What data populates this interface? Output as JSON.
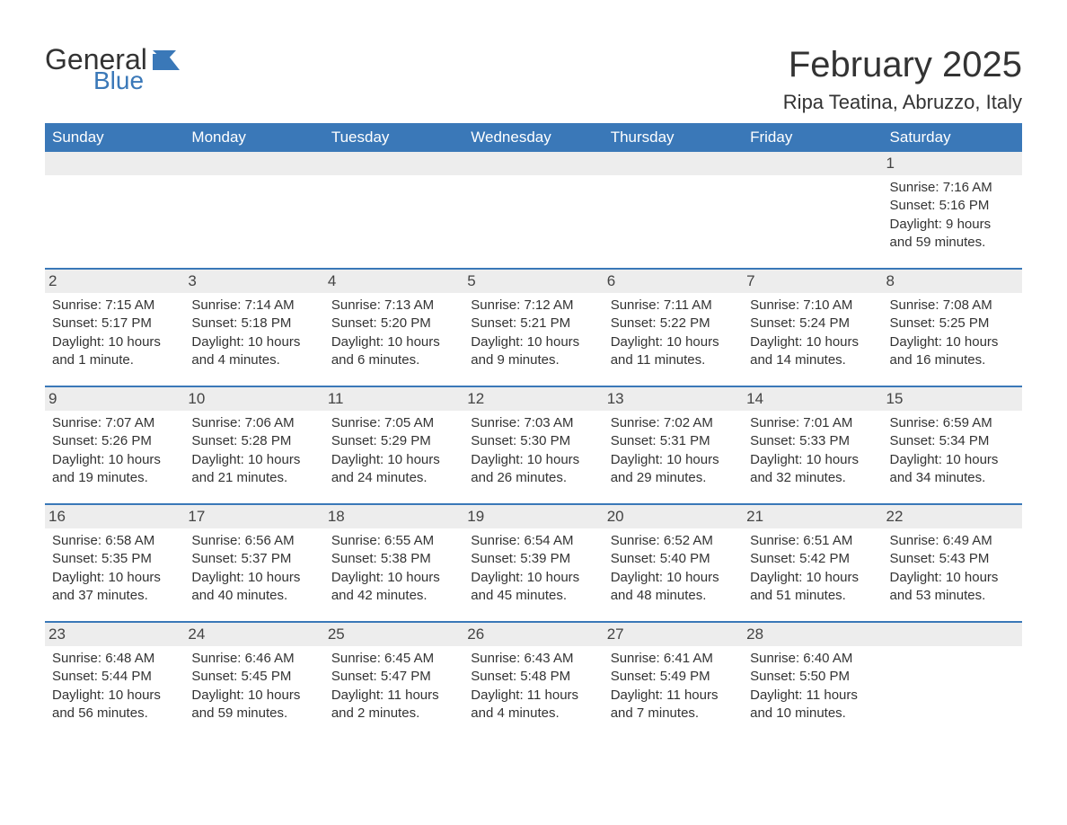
{
  "logo": {
    "general": "General",
    "blue": "Blue",
    "icon_color": "#3a78b8"
  },
  "title": "February 2025",
  "location": "Ripa Teatina, Abruzzo, Italy",
  "colors": {
    "header_bg": "#3a78b8",
    "header_fg": "#ffffff",
    "daynum_bg": "#ededed",
    "border": "#3a78b8",
    "text": "#333333",
    "background": "#ffffff"
  },
  "weekdays": [
    "Sunday",
    "Monday",
    "Tuesday",
    "Wednesday",
    "Thursday",
    "Friday",
    "Saturday"
  ],
  "weeks": [
    [
      null,
      null,
      null,
      null,
      null,
      null,
      {
        "d": "1",
        "sr": "Sunrise: 7:16 AM",
        "ss": "Sunset: 5:16 PM",
        "dl": "Daylight: 9 hours and 59 minutes."
      }
    ],
    [
      {
        "d": "2",
        "sr": "Sunrise: 7:15 AM",
        "ss": "Sunset: 5:17 PM",
        "dl": "Daylight: 10 hours and 1 minute."
      },
      {
        "d": "3",
        "sr": "Sunrise: 7:14 AM",
        "ss": "Sunset: 5:18 PM",
        "dl": "Daylight: 10 hours and 4 minutes."
      },
      {
        "d": "4",
        "sr": "Sunrise: 7:13 AM",
        "ss": "Sunset: 5:20 PM",
        "dl": "Daylight: 10 hours and 6 minutes."
      },
      {
        "d": "5",
        "sr": "Sunrise: 7:12 AM",
        "ss": "Sunset: 5:21 PM",
        "dl": "Daylight: 10 hours and 9 minutes."
      },
      {
        "d": "6",
        "sr": "Sunrise: 7:11 AM",
        "ss": "Sunset: 5:22 PM",
        "dl": "Daylight: 10 hours and 11 minutes."
      },
      {
        "d": "7",
        "sr": "Sunrise: 7:10 AM",
        "ss": "Sunset: 5:24 PM",
        "dl": "Daylight: 10 hours and 14 minutes."
      },
      {
        "d": "8",
        "sr": "Sunrise: 7:08 AM",
        "ss": "Sunset: 5:25 PM",
        "dl": "Daylight: 10 hours and 16 minutes."
      }
    ],
    [
      {
        "d": "9",
        "sr": "Sunrise: 7:07 AM",
        "ss": "Sunset: 5:26 PM",
        "dl": "Daylight: 10 hours and 19 minutes."
      },
      {
        "d": "10",
        "sr": "Sunrise: 7:06 AM",
        "ss": "Sunset: 5:28 PM",
        "dl": "Daylight: 10 hours and 21 minutes."
      },
      {
        "d": "11",
        "sr": "Sunrise: 7:05 AM",
        "ss": "Sunset: 5:29 PM",
        "dl": "Daylight: 10 hours and 24 minutes."
      },
      {
        "d": "12",
        "sr": "Sunrise: 7:03 AM",
        "ss": "Sunset: 5:30 PM",
        "dl": "Daylight: 10 hours and 26 minutes."
      },
      {
        "d": "13",
        "sr": "Sunrise: 7:02 AM",
        "ss": "Sunset: 5:31 PM",
        "dl": "Daylight: 10 hours and 29 minutes."
      },
      {
        "d": "14",
        "sr": "Sunrise: 7:01 AM",
        "ss": "Sunset: 5:33 PM",
        "dl": "Daylight: 10 hours and 32 minutes."
      },
      {
        "d": "15",
        "sr": "Sunrise: 6:59 AM",
        "ss": "Sunset: 5:34 PM",
        "dl": "Daylight: 10 hours and 34 minutes."
      }
    ],
    [
      {
        "d": "16",
        "sr": "Sunrise: 6:58 AM",
        "ss": "Sunset: 5:35 PM",
        "dl": "Daylight: 10 hours and 37 minutes."
      },
      {
        "d": "17",
        "sr": "Sunrise: 6:56 AM",
        "ss": "Sunset: 5:37 PM",
        "dl": "Daylight: 10 hours and 40 minutes."
      },
      {
        "d": "18",
        "sr": "Sunrise: 6:55 AM",
        "ss": "Sunset: 5:38 PM",
        "dl": "Daylight: 10 hours and 42 minutes."
      },
      {
        "d": "19",
        "sr": "Sunrise: 6:54 AM",
        "ss": "Sunset: 5:39 PM",
        "dl": "Daylight: 10 hours and 45 minutes."
      },
      {
        "d": "20",
        "sr": "Sunrise: 6:52 AM",
        "ss": "Sunset: 5:40 PM",
        "dl": "Daylight: 10 hours and 48 minutes."
      },
      {
        "d": "21",
        "sr": "Sunrise: 6:51 AM",
        "ss": "Sunset: 5:42 PM",
        "dl": "Daylight: 10 hours and 51 minutes."
      },
      {
        "d": "22",
        "sr": "Sunrise: 6:49 AM",
        "ss": "Sunset: 5:43 PM",
        "dl": "Daylight: 10 hours and 53 minutes."
      }
    ],
    [
      {
        "d": "23",
        "sr": "Sunrise: 6:48 AM",
        "ss": "Sunset: 5:44 PM",
        "dl": "Daylight: 10 hours and 56 minutes."
      },
      {
        "d": "24",
        "sr": "Sunrise: 6:46 AM",
        "ss": "Sunset: 5:45 PM",
        "dl": "Daylight: 10 hours and 59 minutes."
      },
      {
        "d": "25",
        "sr": "Sunrise: 6:45 AM",
        "ss": "Sunset: 5:47 PM",
        "dl": "Daylight: 11 hours and 2 minutes."
      },
      {
        "d": "26",
        "sr": "Sunrise: 6:43 AM",
        "ss": "Sunset: 5:48 PM",
        "dl": "Daylight: 11 hours and 4 minutes."
      },
      {
        "d": "27",
        "sr": "Sunrise: 6:41 AM",
        "ss": "Sunset: 5:49 PM",
        "dl": "Daylight: 11 hours and 7 minutes."
      },
      {
        "d": "28",
        "sr": "Sunrise: 6:40 AM",
        "ss": "Sunset: 5:50 PM",
        "dl": "Daylight: 11 hours and 10 minutes."
      },
      null
    ]
  ]
}
